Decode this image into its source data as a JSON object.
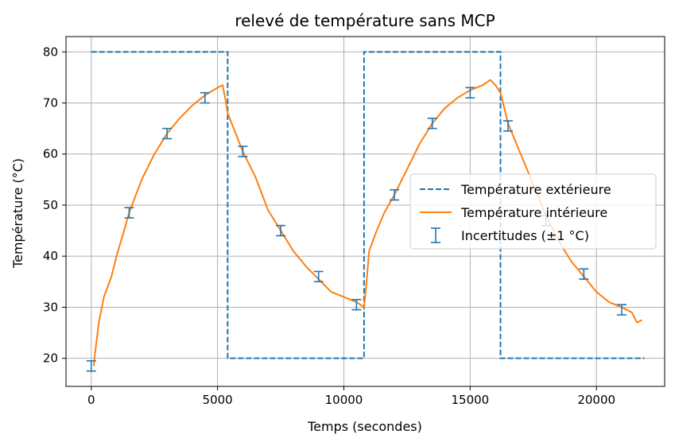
{
  "chart_data": {
    "type": "line",
    "title": "relevé de température sans MCP",
    "xlabel": "Temps (secondes)",
    "ylabel": "Température (°C)",
    "xlim": [
      -1000,
      22700
    ],
    "ylim": [
      14.5,
      83.0
    ],
    "xticks": [
      0,
      5000,
      10000,
      15000,
      20000
    ],
    "yticks": [
      20,
      30,
      40,
      50,
      60,
      70,
      80
    ],
    "xtick_labels": [
      "0",
      "5000",
      "10000",
      "15000",
      "20000"
    ],
    "ytick_labels": [
      "20",
      "30",
      "40",
      "50",
      "60",
      "70",
      "80"
    ],
    "grid": true,
    "legend_position": "center-right",
    "colors": {
      "exterior": "#1f77b4",
      "interior": "#ff7f0e",
      "errorbar": "#1f77b4",
      "grid": "#b0b0b0"
    },
    "series": [
      {
        "name": "Température extérieure",
        "style": "dashed",
        "x": [
          0,
          5400,
          5400,
          10800,
          10800,
          16200,
          16200,
          21900
        ],
        "y": [
          80,
          80,
          20,
          20,
          80,
          80,
          20,
          20
        ]
      },
      {
        "name": "Température intérieure",
        "style": "solid",
        "x": [
          100,
          150,
          300,
          500,
          800,
          1000,
          1300,
          1500,
          2000,
          2500,
          3000,
          3500,
          4000,
          4500,
          5000,
          5200,
          5300,
          5400,
          6000,
          6500,
          7000,
          7500,
          8000,
          8500,
          9000,
          9500,
          10000,
          10500,
          10800,
          10900,
          11000,
          11300,
          11600,
          12000,
          12500,
          13000,
          13500,
          14000,
          14500,
          15000,
          15500,
          15800,
          16000,
          16200,
          16500,
          17000,
          17500,
          18000,
          18500,
          19000,
          19500,
          20000,
          20500,
          21000,
          21400,
          21600,
          21800
        ],
        "y": [
          18.5,
          21,
          27,
          32,
          36,
          40,
          45,
          48.5,
          55,
          60,
          64,
          67,
          69.5,
          71.5,
          73,
          73.5,
          71,
          68,
          60.5,
          55.5,
          49,
          45,
          41,
          38,
          35.5,
          33,
          32,
          31,
          30,
          35,
          41,
          45,
          48.5,
          52,
          57,
          62,
          66,
          69,
          71,
          72.5,
          73.5,
          74.5,
          73.5,
          72,
          66,
          60,
          54,
          48,
          43,
          39,
          36,
          33,
          31,
          30,
          29,
          27,
          27.5
        ]
      }
    ],
    "errorbars": {
      "name": "Incertitudes (±1 °C)",
      "uncertainty": 1,
      "x": [
        0,
        1500,
        3000,
        4500,
        6000,
        7500,
        9000,
        10500,
        12000,
        13500,
        15000,
        16500,
        18000,
        19500,
        21000
      ],
      "y": [
        18.5,
        48.5,
        64,
        71,
        60.5,
        45,
        36,
        30.5,
        52,
        66,
        72,
        65.5,
        47,
        36.5,
        29.5
      ]
    }
  }
}
